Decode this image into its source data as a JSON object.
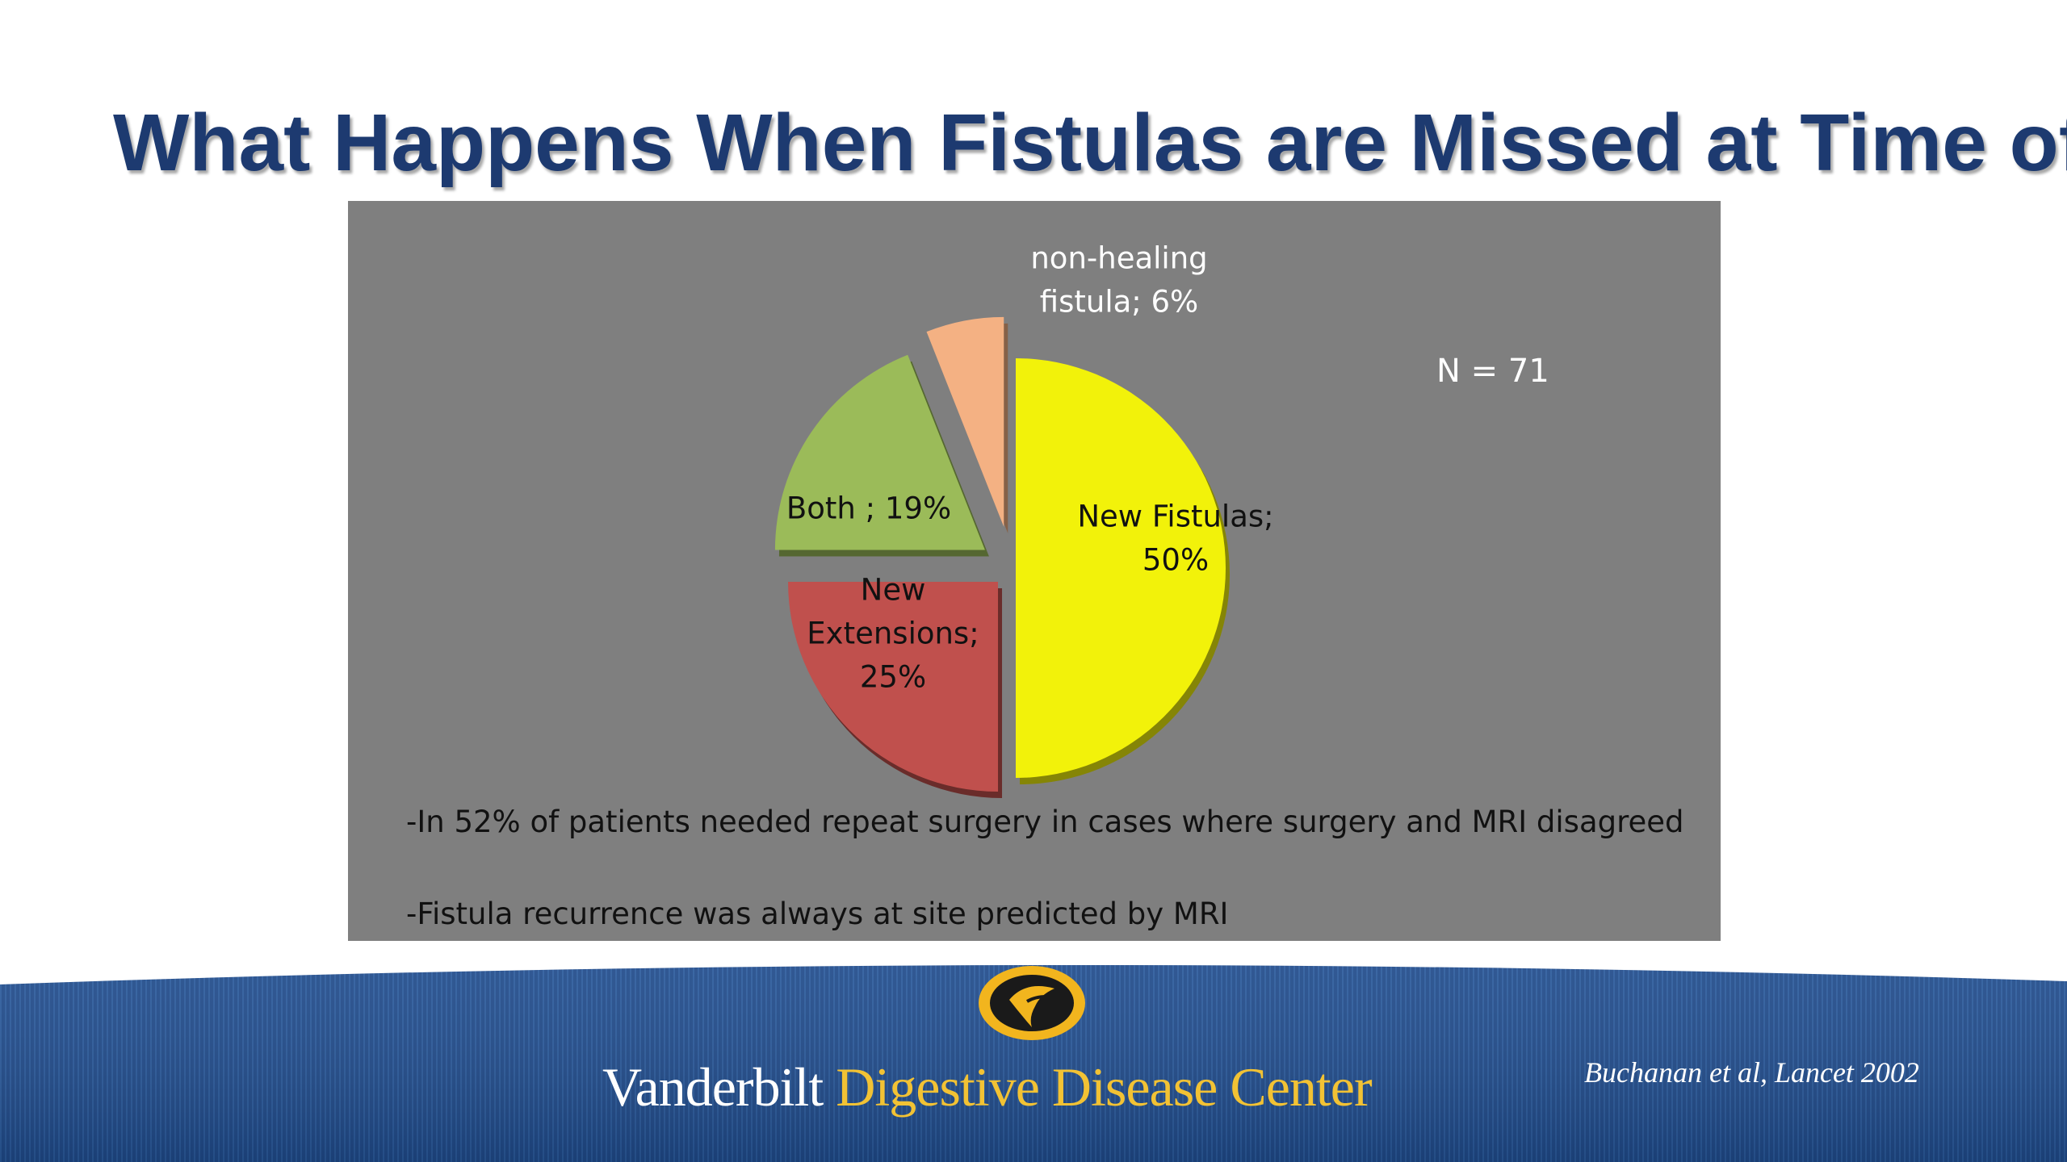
{
  "slide": {
    "title": "What Happens When Fistulas are Missed at Time of"
  },
  "chart_data": {
    "type": "pie",
    "title": "",
    "exploded": true,
    "slices": [
      {
        "label_lines": [
          "New Fistulas;",
          "50%"
        ],
        "category": "New Fistulas",
        "value": 50,
        "color": "#f2f20a",
        "label_color": "#111111"
      },
      {
        "label_lines": [
          "New",
          "Extensions;",
          "25%"
        ],
        "category": "New Extensions",
        "value": 25,
        "color": "#c0504d",
        "label_color": "#111111"
      },
      {
        "label_lines": [
          "Both ; 19%"
        ],
        "category": "Both",
        "value": 19,
        "color": "#9bbb59",
        "label_color": "#111111"
      },
      {
        "label_lines": [
          "non-healing",
          "fistula; 6%"
        ],
        "category": "non-healing fistula",
        "value": 6,
        "color": "#f4b183",
        "label_color": "#ffffff"
      }
    ],
    "annotation": "N = 71",
    "notes": [
      "-In 52% of patients  needed repeat surgery in cases where surgery and MRI disagreed",
      "-Fistula recurrence was always at site predicted by MRI"
    ],
    "panel_color": "#7f7f7f"
  },
  "footer": {
    "brand_part1": "Vanderbilt",
    "brand_part2": "Digestive Disease Center",
    "citation": "Buchanan et al, Lancet 2002",
    "logo_icon": "vanderbilt-oak-leaf-logo",
    "band_color": "#1f4a8a",
    "accent_color": "#f2c234"
  }
}
